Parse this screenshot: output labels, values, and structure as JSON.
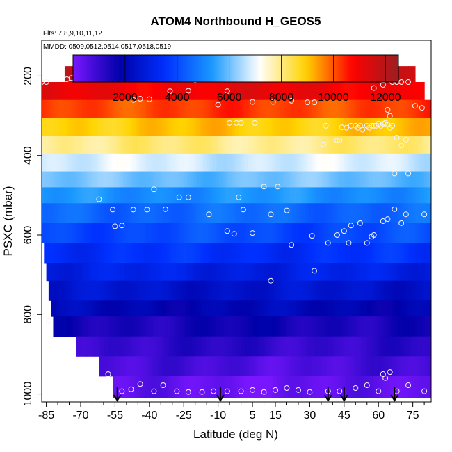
{
  "chart_data": {
    "type": "heatmap",
    "title": "ATOM4 Northbound H_GEOS5",
    "subtitle_lines": [
      "Flts: 7,8,9,10,11,12",
      "MMDD: 0509,0512,0514,0517,0518,0519"
    ],
    "xlabel": "Latitude (deg N)",
    "ylabel": "PSXC (mbar)",
    "xlim": [
      -87,
      83
    ],
    "ylim": [
      1020,
      110
    ],
    "x_ticks": [
      -85,
      -70,
      -55,
      -40,
      -25,
      -10,
      5,
      15,
      30,
      45,
      60,
      75
    ],
    "x_minor_ticks": [
      -80,
      -75,
      -65,
      -60,
      -50,
      -45,
      -35,
      -30,
      -20,
      -15,
      -5,
      0,
      10,
      20,
      25,
      35,
      40,
      50,
      55,
      65,
      70,
      80
    ],
    "y_ticks": [
      200,
      400,
      600,
      800,
      1000
    ],
    "colorbar": {
      "range": [
        0,
        12500
      ],
      "ticks": [
        2000,
        4000,
        6000,
        8000,
        10000,
        12000
      ],
      "colors": [
        "#7a16ff",
        "#0000a8",
        "#0030ff",
        "#1a9aff",
        "#ffffff",
        "#ffd400",
        "#ff0000",
        "#9a1e22"
      ]
    },
    "bands": [
      {
        "p_top": 175,
        "p_bot": 215,
        "x_min": -77,
        "x_max": 76,
        "value": 11700
      },
      {
        "p_top": 215,
        "p_bot": 260,
        "x_min": -87,
        "x_max": 80,
        "value": 11000
      },
      {
        "p_top": 260,
        "p_bot": 305,
        "x_min": -87,
        "x_max": 83,
        "value": 10200
      },
      {
        "p_top": 305,
        "p_bot": 350,
        "x_min": -87,
        "x_max": 83,
        "value": 9000
      },
      {
        "p_top": 350,
        "p_bot": 395,
        "x_min": -87,
        "x_max": 83,
        "value": 8000
      },
      {
        "p_top": 395,
        "p_bot": 440,
        "x_min": -87,
        "x_max": 83,
        "value": 6800
      },
      {
        "p_top": 440,
        "p_bot": 480,
        "x_min": -87,
        "x_max": 83,
        "value": 6000
      },
      {
        "p_top": 480,
        "p_bot": 520,
        "x_min": -87,
        "x_max": 83,
        "value": 5200
      },
      {
        "p_top": 520,
        "p_bot": 570,
        "x_min": -87,
        "x_max": 83,
        "value": 4500
      },
      {
        "p_top": 570,
        "p_bot": 620,
        "x_min": -87,
        "x_max": 83,
        "value": 4000
      },
      {
        "p_top": 620,
        "p_bot": 670,
        "x_min": -86,
        "x_max": 83,
        "value": 3500
      },
      {
        "p_top": 670,
        "p_bot": 715,
        "x_min": -85,
        "x_max": 83,
        "value": 3000
      },
      {
        "p_top": 715,
        "p_bot": 765,
        "x_min": -84,
        "x_max": 83,
        "value": 2500
      },
      {
        "p_top": 765,
        "p_bot": 805,
        "x_min": -83,
        "x_max": 83,
        "value": 2000
      },
      {
        "p_top": 805,
        "p_bot": 855,
        "x_min": -82,
        "x_max": 83,
        "value": 1500
      },
      {
        "p_top": 855,
        "p_bot": 905,
        "x_min": -72,
        "x_max": 83,
        "value": 1100
      },
      {
        "p_top": 905,
        "p_bot": 955,
        "x_min": -62,
        "x_max": 83,
        "value": 700
      },
      {
        "p_top": 955,
        "p_bot": 1010,
        "x_min": -56,
        "x_max": 83,
        "value": 300
      }
    ],
    "points": [
      [
        -87,
        215
      ],
      [
        -85,
        215
      ],
      [
        -76,
        208
      ],
      [
        -74,
        205
      ],
      [
        -70,
        193
      ],
      [
        -67,
        193
      ],
      [
        -64,
        193
      ],
      [
        -60,
        193
      ],
      [
        -58,
        193
      ],
      [
        -20,
        210
      ],
      [
        -2,
        190
      ],
      [
        -47,
        260
      ],
      [
        -44,
        257
      ],
      [
        -40,
        258
      ],
      [
        -31,
        238
      ],
      [
        -23,
        237
      ],
      [
        -10,
        272
      ],
      [
        -6,
        238
      ],
      [
        5,
        265
      ],
      [
        14,
        265
      ],
      [
        22,
        262
      ],
      [
        -5,
        318
      ],
      [
        -2,
        318
      ],
      [
        0,
        318
      ],
      [
        6,
        318
      ],
      [
        35,
        190
      ],
      [
        29,
        266
      ],
      [
        32,
        266
      ],
      [
        58,
        230
      ],
      [
        62,
        222
      ],
      [
        66,
        215
      ],
      [
        67,
        210
      ],
      [
        68,
        215
      ],
      [
        70,
        215
      ],
      [
        73,
        215
      ],
      [
        76,
        275
      ],
      [
        79,
        280
      ],
      [
        64,
        285
      ],
      [
        65,
        300
      ],
      [
        36,
        372
      ],
      [
        42,
        362
      ],
      [
        43,
        362
      ],
      [
        37,
        325
      ],
      [
        44,
        329
      ],
      [
        46,
        330
      ],
      [
        48,
        325
      ],
      [
        50,
        325
      ],
      [
        51,
        330
      ],
      [
        52,
        325
      ],
      [
        53,
        335
      ],
      [
        55,
        325
      ],
      [
        56,
        330
      ],
      [
        57,
        325
      ],
      [
        58,
        325
      ],
      [
        59,
        325
      ],
      [
        60,
        320
      ],
      [
        61,
        325
      ],
      [
        62,
        320
      ],
      [
        63,
        318
      ],
      [
        64,
        322
      ],
      [
        65,
        330
      ],
      [
        66,
        325
      ],
      [
        68,
        355
      ],
      [
        70,
        375
      ],
      [
        66,
        415
      ],
      [
        67,
        445
      ],
      [
        73,
        445
      ],
      [
        72,
        360
      ],
      [
        -62,
        510
      ],
      [
        -56,
        536
      ],
      [
        -55,
        578
      ],
      [
        -52,
        576
      ],
      [
        -47,
        536
      ],
      [
        -41,
        536
      ],
      [
        -38,
        485
      ],
      [
        -33,
        535
      ],
      [
        -27,
        505
      ],
      [
        -23,
        505
      ],
      [
        -14,
        548
      ],
      [
        -6,
        590
      ],
      [
        -3,
        597
      ],
      [
        1,
        536
      ],
      [
        5,
        595
      ],
      [
        -1,
        505
      ],
      [
        10,
        478
      ],
      [
        16,
        478
      ],
      [
        20,
        538
      ],
      [
        13,
        548
      ],
      [
        31,
        602
      ],
      [
        38,
        620
      ],
      [
        42,
        600
      ],
      [
        45,
        590
      ],
      [
        55,
        620
      ],
      [
        57,
        604
      ],
      [
        58,
        600
      ],
      [
        62,
        565
      ],
      [
        64,
        560
      ],
      [
        67,
        535
      ],
      [
        70,
        570
      ],
      [
        72,
        548
      ],
      [
        80,
        548
      ],
      [
        22,
        625
      ],
      [
        47,
        620
      ],
      [
        48,
        576
      ],
      [
        52,
        570
      ],
      [
        13,
        715
      ],
      [
        32,
        690
      ],
      [
        -84,
        817
      ],
      [
        -58,
        950
      ],
      [
        -52,
        993
      ],
      [
        -48,
        988
      ],
      [
        -44,
        975
      ],
      [
        -38,
        993
      ],
      [
        -34,
        978
      ],
      [
        -28,
        993
      ],
      [
        -23,
        995
      ],
      [
        -17,
        995
      ],
      [
        -12,
        993
      ],
      [
        -6,
        993
      ],
      [
        0,
        993
      ],
      [
        5,
        990
      ],
      [
        10,
        995
      ],
      [
        15,
        990
      ],
      [
        20,
        985
      ],
      [
        25,
        990
      ],
      [
        30,
        995
      ],
      [
        38,
        993
      ],
      [
        43,
        993
      ],
      [
        50,
        985
      ],
      [
        55,
        978
      ],
      [
        60,
        993
      ],
      [
        62,
        950
      ],
      [
        63,
        960
      ],
      [
        65,
        945
      ],
      [
        68,
        993
      ],
      [
        73,
        978
      ],
      [
        80,
        993
      ]
    ],
    "arrows_x": [
      -54,
      -9,
      38,
      45,
      67
    ]
  }
}
